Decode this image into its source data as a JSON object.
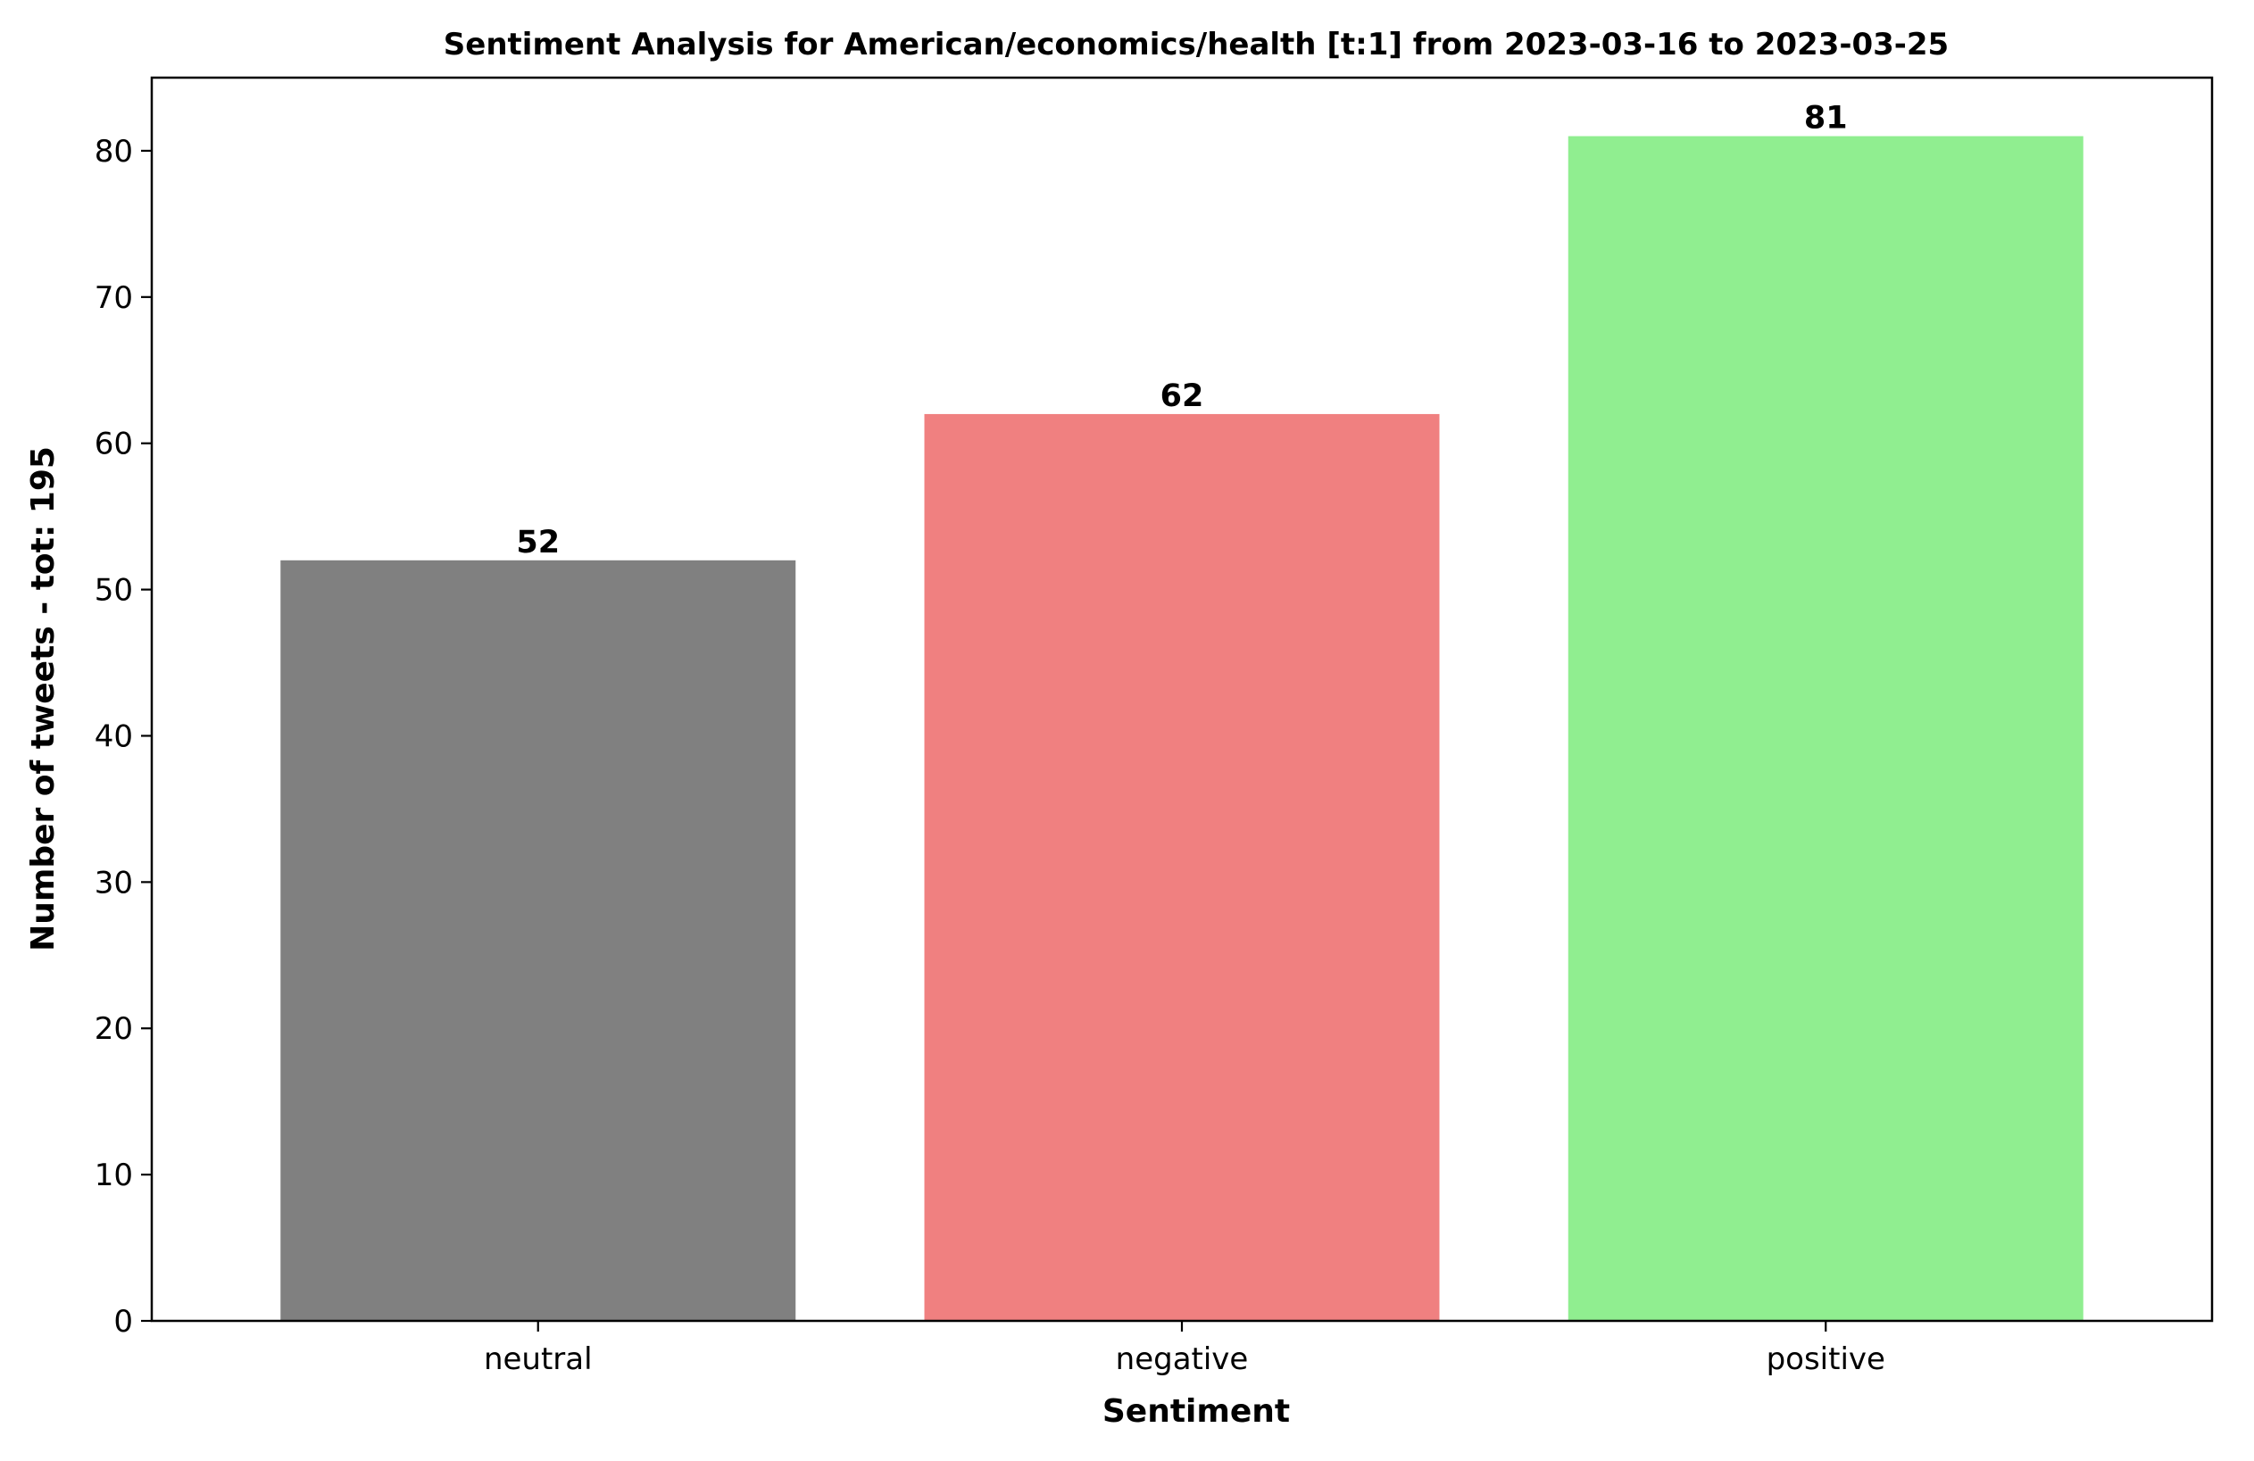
{
  "chart_data": {
    "type": "bar",
    "title": "Sentiment Analysis for American/economics/health [t:1] from 2023-03-16 to 2023-03-25",
    "xlabel": "Sentiment",
    "ylabel": "Number of tweets - tot: 195",
    "categories": [
      "neutral",
      "negative",
      "positive"
    ],
    "values": [
      52,
      62,
      81
    ],
    "colors": [
      "#808080",
      "#f08080",
      "#90ee90"
    ],
    "data_labels": [
      "52",
      "62",
      "81"
    ],
    "ylim": [
      0,
      85
    ],
    "yticks": [
      0,
      10,
      20,
      30,
      40,
      50,
      60,
      70,
      80
    ],
    "grid": false,
    "legend": "none"
  }
}
